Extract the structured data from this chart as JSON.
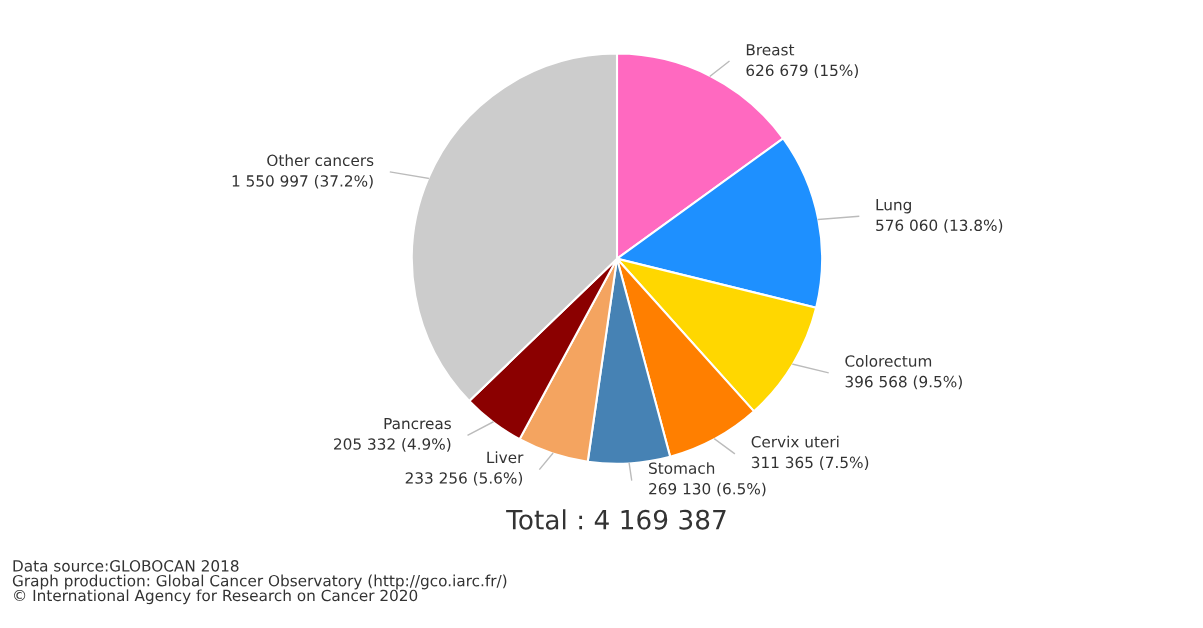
{
  "chart_data": {
    "type": "pie",
    "categories": [
      "Breast",
      "Lung",
      "Colorectum",
      "Cervix uteri",
      "Stomach",
      "Liver",
      "Pancreas",
      "Other cancers"
    ],
    "values": [
      626679,
      576060,
      396568,
      311365,
      269130,
      233256,
      205332,
      1550997
    ],
    "value_labels": [
      "626 679 (15%)",
      "576 060 (13.8%)",
      "396 568 (9.5%)",
      "311 365 (7.5%)",
      "269 130 (6.5%)",
      "233 256 (5.6%)",
      "205 332 (4.9%)",
      "1 550 997 (37.2%)"
    ],
    "colors": [
      "#ff69c0",
      "#1e90ff",
      "#ffd700",
      "#ff7f00",
      "#4682b4",
      "#f4a460",
      "#8b0000",
      "#cccccc"
    ],
    "annotations": [
      "Total : 4 169 387",
      "Data source:GLOBOCAN 2018\nGraph production: Global Cancer Observatory (http://gco.iarc.fr/)\n© International Agency for Research on Cancer 2020"
    ]
  }
}
